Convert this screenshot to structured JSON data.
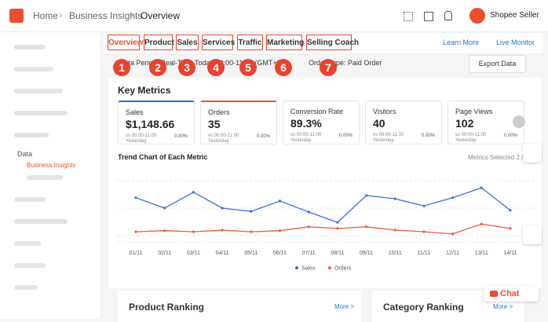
{
  "header": {
    "breadcrumb": [
      "Home",
      "Business Insights",
      "Overview"
    ],
    "user": "Shopee Seller"
  },
  "sidebar": {
    "section": "Data",
    "active": "Business Insights"
  },
  "tabs": [
    "Overview",
    "Product",
    "Sales",
    "Services",
    "Traffic",
    "Marketing",
    "Selling Coach"
  ],
  "annotations": [
    "1",
    "2",
    "3",
    "4",
    "5",
    "6",
    "7"
  ],
  "links": [
    "Learn More",
    "Live Monitor"
  ],
  "filters": {
    "period": "Data Period: Real-Time Today 00:00-11:00 (GMT+8)",
    "order_type": "Order Type: Paid Order",
    "export": "Export Data"
  },
  "key_metrics": {
    "title": "Key Metrics",
    "cards": [
      {
        "name": "Sales",
        "value": "$1,148.66",
        "compare": "vs 00:00-11:00 Yesterday",
        "change": "0.00%"
      },
      {
        "name": "Orders",
        "value": "35",
        "compare": "vs 00:00-11:00 Yesterday",
        "change": "0.00%"
      },
      {
        "name": "Conversion Rate",
        "value": "89.3%",
        "compare": "vs 00:00-11:00 Yesterday",
        "change": "0.00%"
      },
      {
        "name": "Visitors",
        "value": "40",
        "compare": "vs 00:00-11:00 Yesterday",
        "change": "0.00%"
      },
      {
        "name": "Page Views",
        "value": "102",
        "compare": "vs 00:00-11:00 Yesterday",
        "change": "0.00%"
      }
    ]
  },
  "trend_chart": {
    "type": "line",
    "title": "Trend Chart of Each Metric",
    "selected": "Metrics Selected 2 /",
    "x": [
      "01/11",
      "02/11",
      "03/11",
      "04/11",
      "05/11",
      "06/11",
      "07/11",
      "08/11",
      "09/11",
      "10/11",
      "11/11",
      "12/11",
      "13/11",
      "14/11"
    ],
    "ylim": [
      0,
      100
    ],
    "series": [
      {
        "name": "Sales",
        "color": "#3a6fd8",
        "values": [
          69,
          50,
          79,
          50,
          44,
          63,
          43,
          24,
          73,
          67,
          54,
          69,
          87,
          46
        ]
      },
      {
        "name": "Orders",
        "color": "#ee5a3a",
        "values": [
          7,
          9,
          7,
          10,
          7,
          9,
          16,
          13,
          16,
          10,
          7,
          3,
          21,
          13
        ]
      }
    ]
  },
  "bottom": {
    "left": "Product Ranking",
    "right": "Category Ranking",
    "more": "More >"
  },
  "chat": "Chat"
}
